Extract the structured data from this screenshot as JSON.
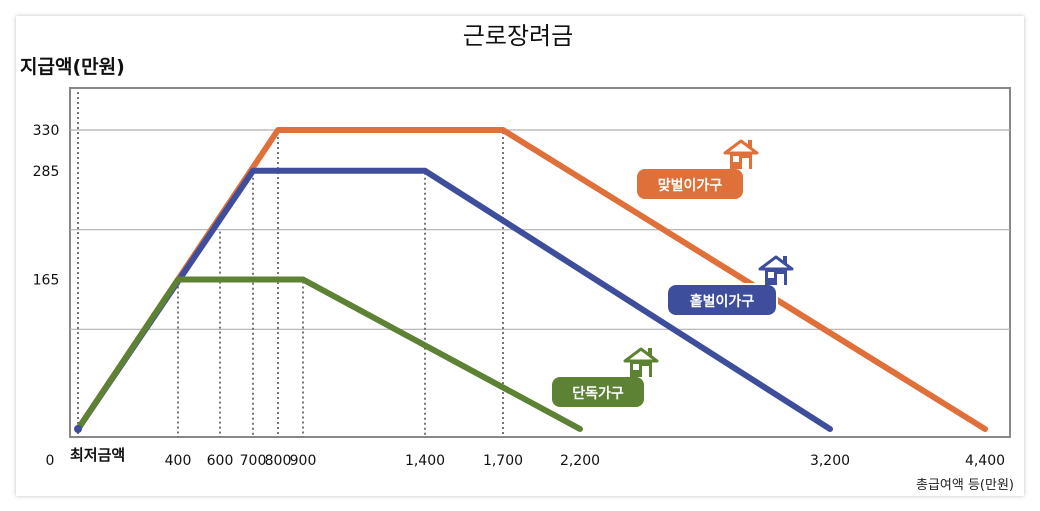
{
  "chart_data": {
    "type": "line",
    "title": "근로장려금",
    "ylabel": "지급액(만원)",
    "xlabel": "총급여액 등(만원)",
    "x_origin_label": "최저금액",
    "y_origin_label": "0",
    "x_ticks": [
      400,
      600,
      700,
      800,
      900,
      1400,
      1700,
      2200,
      3200,
      4400
    ],
    "x_tick_labels": [
      "400",
      "600",
      "700",
      "800",
      "900",
      "1,400",
      "1,700",
      "2,200",
      "3,200",
      "4,400"
    ],
    "y_ticks": [
      165,
      285,
      330
    ],
    "y_tick_labels": [
      "165",
      "285",
      "330"
    ],
    "xlim": [
      0,
      4400
    ],
    "ylim": [
      0,
      330
    ],
    "grid": true,
    "series": [
      {
        "name": "맞벌이가구",
        "color": "#e0703a",
        "x": [
          0,
          800,
          1700,
          4400
        ],
        "y": [
          0,
          330,
          330,
          0
        ]
      },
      {
        "name": "홑벌이가구",
        "color": "#3f4e9c",
        "x": [
          0,
          700,
          1400,
          3200
        ],
        "y": [
          0,
          285,
          285,
          0
        ]
      },
      {
        "name": "단독가구",
        "color": "#5d8233",
        "x": [
          0,
          400,
          900,
          2200
        ],
        "y": [
          0,
          165,
          165,
          0
        ]
      }
    ],
    "icon": "house-icon"
  }
}
